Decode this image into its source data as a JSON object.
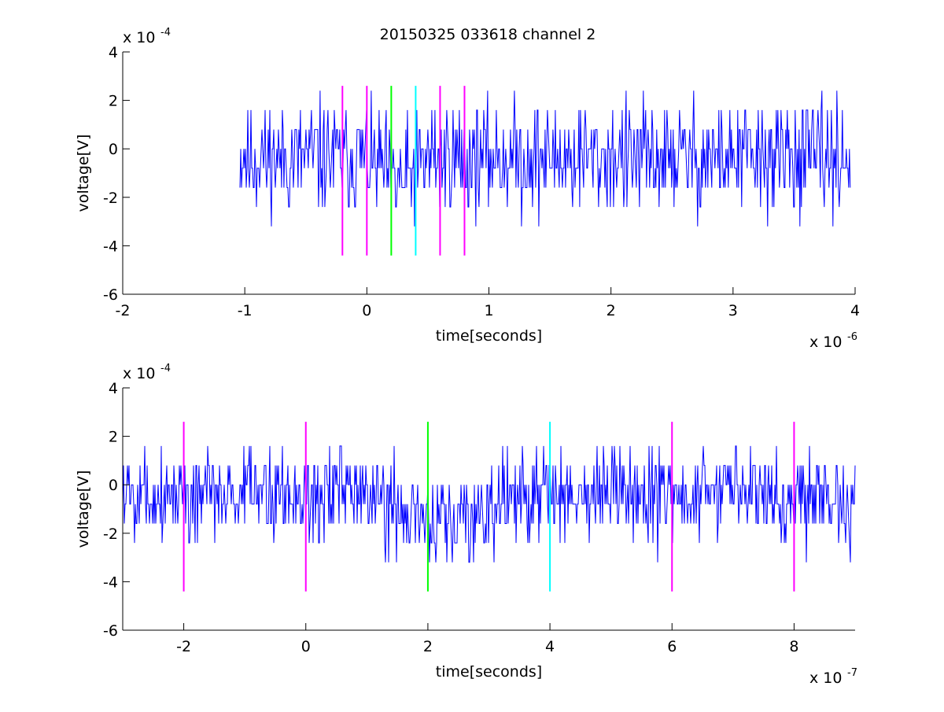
{
  "figure": {
    "title": "20150325 033618 channel 2"
  },
  "chart_data": [
    {
      "type": "line",
      "xlabel": "time[seconds]",
      "ylabel": "voltage[V]",
      "x_exponent": "x 10",
      "x_exponent_power": "-6",
      "y_exponent": "x 10",
      "y_exponent_power": "-4",
      "xlim": [
        -2,
        4
      ],
      "ylim": [
        -6,
        4
      ],
      "xticks": [
        -2,
        -1,
        0,
        1,
        2,
        3,
        4
      ],
      "xtick_labels": [
        "-2",
        "-1",
        "0",
        "1",
        "2",
        "3",
        "4"
      ],
      "yticks": [
        -6,
        -4,
        -2,
        0,
        2,
        4
      ],
      "ytick_labels": [
        "-6",
        "-4",
        "-2",
        "0",
        "2",
        "4"
      ],
      "grid": false,
      "signal": {
        "color": "#0000ff",
        "x_start": -1.04,
        "x_end": 3.96,
        "y_levels": [
          -4,
          -3.2,
          -2.4,
          -1.6,
          -0.8,
          0,
          0.8,
          1.6,
          2.4
        ],
        "seed": 11,
        "noise_amp": 1.15,
        "baseline": -0.35,
        "dip": {
          "center": 0.25,
          "width": 0.18,
          "depth": -1.0
        }
      },
      "markers": [
        {
          "x": -0.2,
          "color": "#ff00ff",
          "y_range": [
            -4.4,
            2.6
          ]
        },
        {
          "x": 0.0,
          "color": "#ff00ff",
          "y_range": [
            -4.4,
            2.6
          ]
        },
        {
          "x": 0.2,
          "color": "#00ff00",
          "y_range": [
            -4.4,
            2.6
          ]
        },
        {
          "x": 0.4,
          "color": "#00ffff",
          "y_range": [
            -4.4,
            2.6
          ]
        },
        {
          "x": 0.6,
          "color": "#ff00ff",
          "y_range": [
            -4.4,
            2.6
          ]
        },
        {
          "x": 0.8,
          "color": "#ff00ff",
          "y_range": [
            -4.4,
            2.6
          ]
        }
      ]
    },
    {
      "type": "line",
      "xlabel": "time[seconds]",
      "ylabel": "voltage[V]",
      "x_exponent": "x 10",
      "x_exponent_power": "-7",
      "y_exponent": "x 10",
      "y_exponent_power": "-4",
      "xlim": [
        -3,
        9
      ],
      "ylim": [
        -6,
        4
      ],
      "xticks": [
        -2,
        0,
        2,
        4,
        6,
        8
      ],
      "xtick_labels": [
        "-2",
        "0",
        "2",
        "4",
        "6",
        "8"
      ],
      "yticks": [
        -6,
        -4,
        -2,
        0,
        2,
        4
      ],
      "ytick_labels": [
        "-6",
        "-4",
        "-2",
        "0",
        "2",
        "4"
      ],
      "grid": false,
      "signal": {
        "color": "#0000ff",
        "x_start": -3,
        "x_end": 9,
        "y_levels": [
          -4,
          -3.2,
          -2.4,
          -1.6,
          -0.8,
          0,
          0.8,
          1.6
        ],
        "seed": 5,
        "noise_amp": 1.0,
        "baseline": -0.35,
        "dip": {
          "center": 2.3,
          "width": 0.9,
          "depth": -1.3
        }
      },
      "markers": [
        {
          "x": -2,
          "color": "#ff00ff",
          "y_range": [
            -4.4,
            2.6
          ]
        },
        {
          "x": 0,
          "color": "#ff00ff",
          "y_range": [
            -4.4,
            2.6
          ]
        },
        {
          "x": 2,
          "color": "#00ff00",
          "y_range": [
            -4.4,
            2.6
          ]
        },
        {
          "x": 4,
          "color": "#00ffff",
          "y_range": [
            -4.4,
            2.6
          ]
        },
        {
          "x": 6,
          "color": "#ff00ff",
          "y_range": [
            -4.4,
            2.6
          ]
        },
        {
          "x": 8,
          "color": "#ff00ff",
          "y_range": [
            -4.4,
            2.6
          ]
        }
      ]
    }
  ]
}
